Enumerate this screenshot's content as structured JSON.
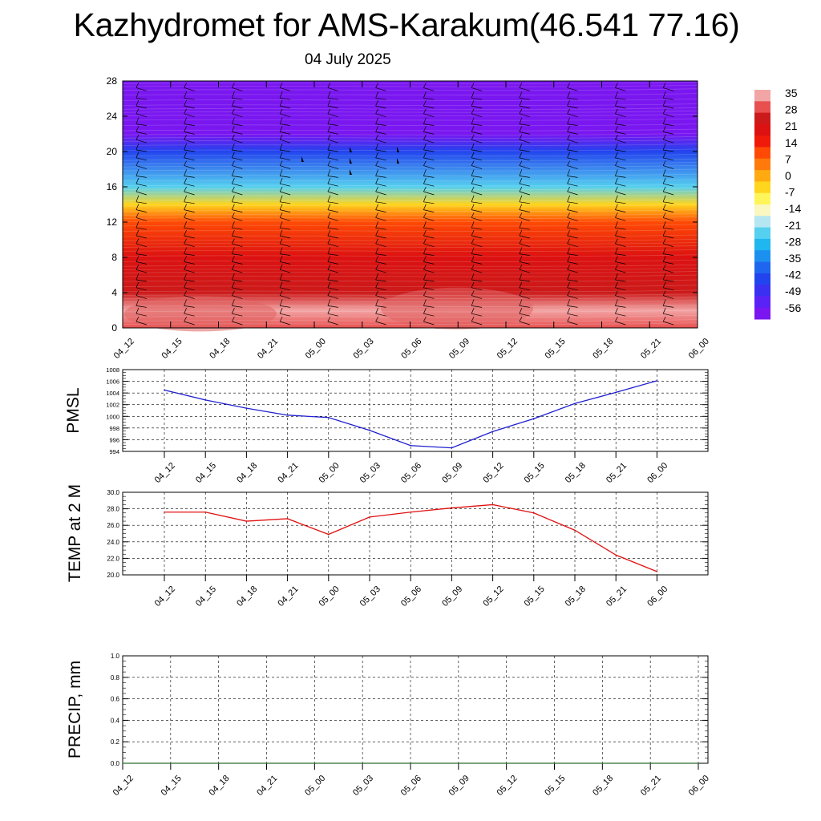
{
  "title": "Kazhydromet for AMS-Karakum(46.541 77.16)",
  "subtitle": "04 July 2025",
  "colors": {
    "pmsl_line": "#1f1fd0",
    "temp_line": "#e01010",
    "precip_line": "#2a6e2a",
    "colorbar": [
      "#7a17f0",
      "#5a22f5",
      "#3a30f2",
      "#2244ee",
      "#1f66ee",
      "#1c90ee",
      "#20b6ef",
      "#55d0ef",
      "#b5e6f2",
      "#fbf7c0",
      "#fff55a",
      "#ffd51e",
      "#ffaa10",
      "#ff7a0a",
      "#ff4a05",
      "#f01a0a",
      "#dc1111",
      "#cc1a1a",
      "#e85050",
      "#f2a5a5"
    ]
  },
  "chart_data": [
    {
      "type": "heatmap",
      "name": "temperature-wind cross section",
      "x_tick_labels": [
        "04_12",
        "04_15",
        "04_18",
        "04_21",
        "05_00",
        "05_03",
        "05_06",
        "05_09",
        "05_12",
        "05_15",
        "05_18",
        "05_21",
        "06_00"
      ],
      "y_ticks": [
        0,
        4,
        8,
        12,
        16,
        20,
        24,
        28
      ],
      "ylim": [
        0,
        28
      ],
      "colorbar_labels": [
        "35",
        "28",
        "21",
        "14",
        "7",
        "0",
        "-7",
        "-14",
        "-21",
        "-28",
        "-35",
        "-42",
        "-49",
        "-56"
      ],
      "colorbar_range": [
        -60,
        38
      ],
      "levels_y": [
        0,
        2,
        4,
        8,
        12,
        14,
        16,
        20,
        22,
        24,
        28
      ],
      "temperature_profile": [
        32,
        34,
        28,
        20,
        11,
        -2,
        -22,
        -42,
        -58,
        -56,
        -60
      ]
    },
    {
      "type": "line",
      "ylabel": "PMSL",
      "x_tick_labels": [
        "04_12",
        "04_15",
        "04_18",
        "04_21",
        "05_00",
        "05_03",
        "05_06",
        "05_09",
        "05_12",
        "05_15",
        "05_18",
        "05_21",
        "06_00"
      ],
      "y_tick_labels": [
        "1008",
        "1006",
        "1004",
        "1002",
        "1000",
        "998",
        "996",
        "994"
      ],
      "ylim": [
        994,
        1008
      ],
      "values": [
        1004.5,
        1002.8,
        1001.4,
        1000.2,
        999.8,
        997.6,
        995.0,
        994.6,
        997.4,
        999.6,
        1002.2,
        1004.1,
        1006.1
      ]
    },
    {
      "type": "line",
      "ylabel": "TEMP at 2 M",
      "x_tick_labels": [
        "04_12",
        "04_15",
        "04_18",
        "04_21",
        "05_00",
        "05_03",
        "05_06",
        "05_09",
        "05_12",
        "05_15",
        "05_18",
        "05_21",
        "06_00"
      ],
      "y_tick_labels": [
        "30.0",
        "28.0",
        "26.0",
        "24.0",
        "22.0",
        "20.0"
      ],
      "ylim": [
        20,
        30
      ],
      "values": [
        27.6,
        27.6,
        26.5,
        26.8,
        24.9,
        27.0,
        27.6,
        28.1,
        28.5,
        27.5,
        25.4,
        22.4,
        20.4
      ]
    },
    {
      "type": "line",
      "ylabel": "PRECIP, mm",
      "x_tick_labels": [
        "04_12",
        "04_15",
        "04_18",
        "04_21",
        "05_00",
        "05_03",
        "05_06",
        "05_09",
        "05_12",
        "05_15",
        "05_18",
        "05_21",
        "06_00"
      ],
      "y_tick_labels": [
        "1.0",
        "0.8",
        "0.6",
        "0.4",
        "0.2",
        "0.0"
      ],
      "ylim": [
        0,
        1
      ],
      "values": [
        0,
        0,
        0,
        0,
        0,
        0,
        0,
        0,
        0,
        0,
        0,
        0,
        0
      ]
    }
  ]
}
